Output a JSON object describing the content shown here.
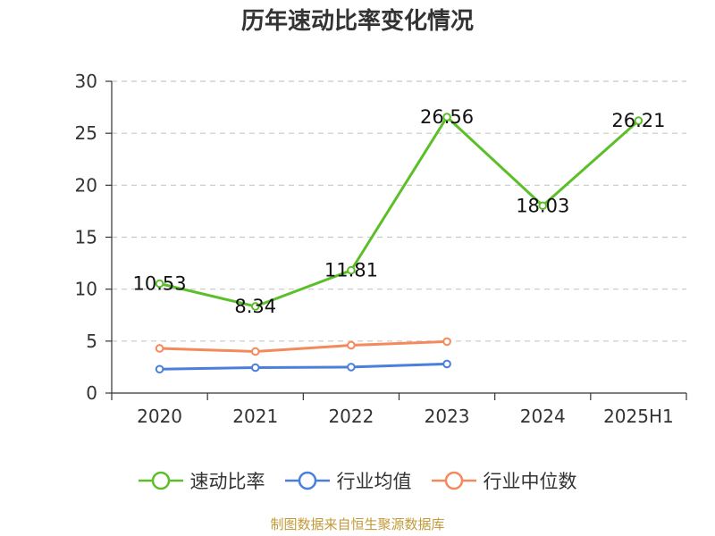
{
  "chart_data": {
    "type": "line",
    "title": "历年速动比率变化情况",
    "categories": [
      "2020",
      "2021",
      "2022",
      "2023",
      "2024",
      "2025H1"
    ],
    "ylim": [
      0,
      30
    ],
    "yticks": [
      0,
      5,
      10,
      15,
      20,
      25,
      30
    ],
    "grid": true,
    "legend_position": "bottom",
    "series": [
      {
        "name": "速动比率",
        "color": "#5cbf2a",
        "values": [
          10.53,
          8.34,
          11.81,
          26.56,
          18.03,
          26.21
        ],
        "labels": [
          "10.53",
          "8.34",
          "11.81",
          "26.56",
          "18.03",
          "26.21"
        ]
      },
      {
        "name": "行业均值",
        "color": "#4a7fdc",
        "values": [
          2.3,
          2.45,
          2.5,
          2.8,
          null,
          null
        ]
      },
      {
        "name": "行业中位数",
        "color": "#f4895a",
        "values": [
          4.3,
          4.0,
          4.6,
          4.95,
          null,
          null
        ]
      }
    ]
  },
  "source_note": "制图数据来自恒生聚源数据库"
}
